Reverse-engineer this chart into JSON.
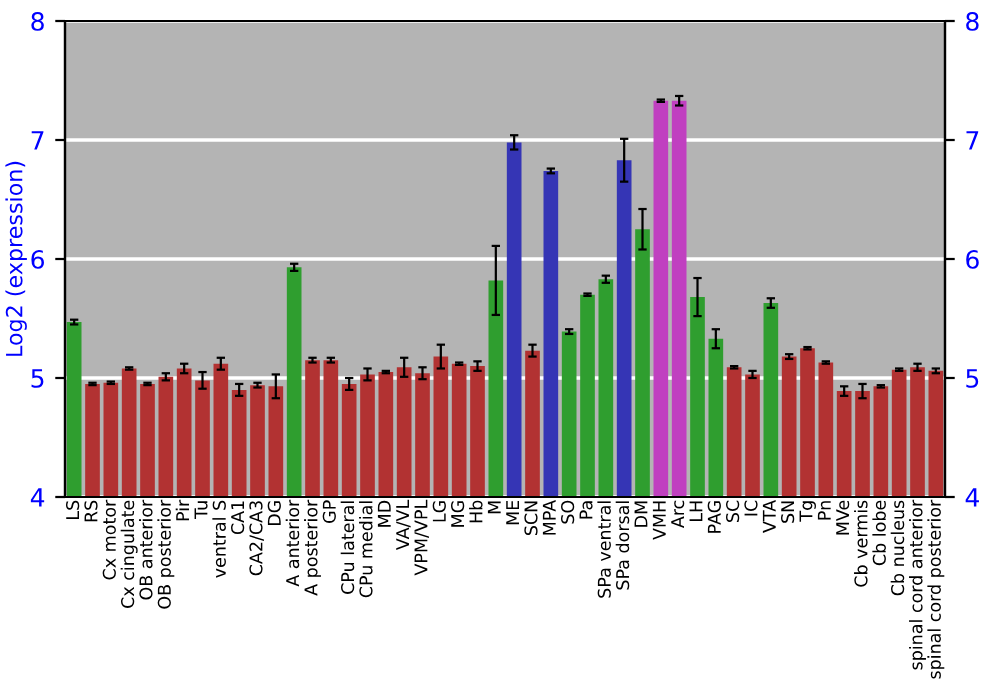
{
  "chart_data": {
    "type": "bar",
    "ylabel": "Log2 (expression)",
    "categories": [
      "LS",
      "RS",
      "Cx motor",
      "Cx cingulate",
      "OB anterior",
      "OB posterior",
      "Pir",
      "Tu",
      "ventral S",
      "CA1",
      "CA2/CA3",
      "DG",
      "A anterior",
      "A posterior",
      "GP",
      "CPu lateral",
      "CPu medial",
      "MD",
      "VA/VL",
      "VPM/VPL",
      "LG",
      "MG",
      "Hb",
      "M",
      "ME",
      "SCN",
      "MPA",
      "SO",
      "Pa",
      "SPa ventral",
      "SPa dorsal",
      "DM",
      "VMH",
      "Arc",
      "LH",
      "PAG",
      "SC",
      "IC",
      "VTA",
      "SN",
      "Tg",
      "Pn",
      "MVe",
      "Cb vermis",
      "Cb lobe",
      "Cb nucleus",
      "spinal cord anterior",
      "spinal cord posterior"
    ],
    "values": [
      5.47,
      4.95,
      4.96,
      5.08,
      4.95,
      5.01,
      5.08,
      4.98,
      5.12,
      4.9,
      4.94,
      4.93,
      5.93,
      5.15,
      5.15,
      4.95,
      5.03,
      5.05,
      5.09,
      5.04,
      5.18,
      5.12,
      5.1,
      5.82,
      6.98,
      5.23,
      6.74,
      5.39,
      5.7,
      5.83,
      6.83,
      6.25,
      7.33,
      7.33,
      5.68,
      5.33,
      5.09,
      5.03,
      5.63,
      5.18,
      5.25,
      5.13,
      4.89,
      4.89,
      4.93,
      5.07,
      5.09,
      5.06
    ],
    "errors": [
      0.02,
      0.01,
      0.01,
      0.01,
      0.01,
      0.03,
      0.04,
      0.07,
      0.05,
      0.05,
      0.02,
      0.1,
      0.03,
      0.02,
      0.02,
      0.05,
      0.05,
      0.01,
      0.08,
      0.05,
      0.1,
      0.01,
      0.04,
      0.29,
      0.06,
      0.05,
      0.02,
      0.02,
      0.01,
      0.03,
      0.18,
      0.17,
      0.01,
      0.04,
      0.16,
      0.08,
      0.01,
      0.03,
      0.04,
      0.02,
      0.01,
      0.01,
      0.04,
      0.06,
      0.01,
      0.01,
      0.03,
      0.02
    ],
    "colors": [
      "#2f9e2f",
      "#b23232",
      "#b23232",
      "#b23232",
      "#b23232",
      "#b23232",
      "#b23232",
      "#b23232",
      "#b23232",
      "#b23232",
      "#b23232",
      "#b23232",
      "#2f9e2f",
      "#b23232",
      "#b23232",
      "#b23232",
      "#b23232",
      "#b23232",
      "#b23232",
      "#b23232",
      "#b23232",
      "#b23232",
      "#b23232",
      "#2f9e2f",
      "#3535b5",
      "#b23232",
      "#3535b5",
      "#2f9e2f",
      "#2f9e2f",
      "#2f9e2f",
      "#3535b5",
      "#2f9e2f",
      "#c040c0",
      "#c040c0",
      "#2f9e2f",
      "#2f9e2f",
      "#b23232",
      "#b23232",
      "#2f9e2f",
      "#b23232",
      "#b23232",
      "#b23232",
      "#b23232",
      "#b23232",
      "#b23232",
      "#b23232",
      "#b23232",
      "#b23232"
    ],
    "ylim": [
      4,
      8
    ],
    "yticks": [
      4,
      5,
      6,
      7,
      8
    ],
    "y2lim": [
      4,
      8
    ],
    "y2ticks": [
      4,
      5,
      6,
      7,
      8
    ],
    "grid": "y"
  }
}
